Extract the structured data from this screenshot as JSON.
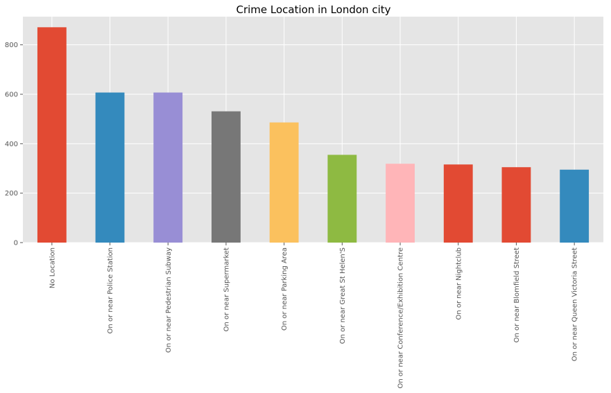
{
  "chart_data": {
    "type": "bar",
    "title": "Crime Location in London city",
    "xlabel": "",
    "ylabel": "",
    "categories": [
      "No Location",
      "On or near Police Station",
      "On or near Pedestrian Subway",
      "On or near Supermarket",
      "On or near Parking Area",
      "On or near Great St Helen'S",
      "On or near Conference/Exhibition Centre",
      "On or near Nightclub",
      "On or near Blomfield Street",
      "On or near Queen Victoria Street"
    ],
    "values": [
      871,
      607,
      607,
      531,
      486,
      355,
      319,
      316,
      305,
      295
    ],
    "colors": [
      "#E24A33",
      "#348ABD",
      "#988ED5",
      "#777777",
      "#FBC15E",
      "#8EBA42",
      "#FFB5B8",
      "#E24A33",
      "#E24A33",
      "#348ABD"
    ],
    "ylim": [
      0,
      914
    ],
    "yticks": [
      0,
      200,
      400,
      600,
      800
    ],
    "grid": true,
    "background": "#E5E5E5",
    "gridColor": "#FFFFFF"
  }
}
